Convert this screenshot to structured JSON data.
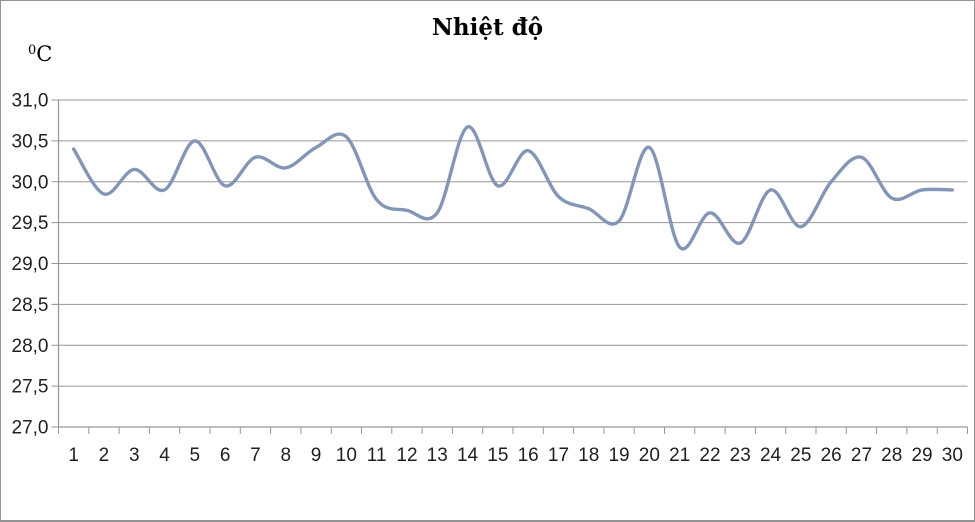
{
  "window": {
    "background": "#ffffff",
    "border_color": "#949494"
  },
  "chart_data": {
    "type": "line",
    "title": "Nhiệt độ",
    "y_unit": {
      "sup": "0",
      "base": "C"
    },
    "categories": [
      1,
      2,
      3,
      4,
      5,
      6,
      7,
      8,
      9,
      10,
      11,
      12,
      13,
      14,
      15,
      16,
      17,
      18,
      19,
      20,
      21,
      22,
      23,
      24,
      25,
      26,
      27,
      28,
      29,
      30
    ],
    "x_tick_labels": [
      "1",
      "2",
      "3",
      "4",
      "5",
      "6",
      "7",
      "8",
      "9",
      "10",
      "11",
      "12",
      "13",
      "14",
      "15",
      "16",
      "17",
      "18",
      "19",
      "20",
      "21",
      "22",
      "23",
      "24",
      "25",
      "26",
      "27",
      "28",
      "29",
      "30"
    ],
    "series": [
      {
        "name": "Nhiệt độ",
        "color": "#8496B6",
        "smooth": true,
        "values": [
          30.4,
          29.85,
          30.15,
          29.9,
          30.5,
          29.95,
          30.3,
          30.17,
          30.42,
          30.55,
          29.78,
          29.65,
          29.62,
          30.67,
          29.95,
          30.38,
          29.82,
          29.67,
          29.52,
          30.42,
          29.2,
          29.62,
          29.25,
          29.9,
          29.45,
          30.0,
          30.3,
          29.8,
          29.9,
          29.9
        ]
      }
    ],
    "ylim": [
      27.0,
      31.0
    ],
    "y_tick_step": 0.5,
    "y_tick_labels": [
      "31,0",
      "30,5",
      "30,0",
      "29,5",
      "29,0",
      "28,5",
      "28,0",
      "27,5",
      "27,0"
    ],
    "xlabel": "",
    "ylabel": "0C",
    "grid": true,
    "legend": "none",
    "colors": {
      "line": "#8496B6",
      "gridline": "#969696",
      "axis": "#969696",
      "tick_text": "#1f1f1f"
    }
  }
}
